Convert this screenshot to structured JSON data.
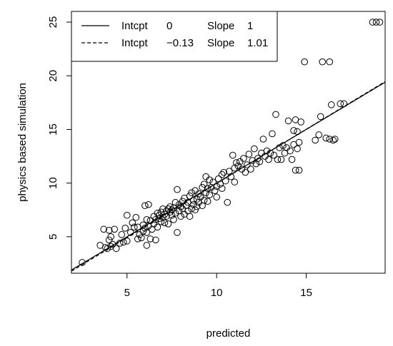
{
  "chart_data": {
    "type": "scatter",
    "title": "",
    "xlabel": "predicted",
    "ylabel": "physics based simulation",
    "xlim": [
      1.9,
      19.4
    ],
    "ylim": [
      1.6,
      26.0
    ],
    "xticks": [
      5,
      10,
      15
    ],
    "yticks": [
      5,
      10,
      15,
      20,
      25
    ],
    "grid": false,
    "legend_position": "top-left",
    "legend": [
      {
        "style": "solid",
        "intercept_label": "Intcpt",
        "intercept_value": "0",
        "slope_label": "Slope",
        "slope_value": "1"
      },
      {
        "style": "dashed",
        "intercept_label": "Intcpt",
        "intercept_value": "−0.13",
        "slope_label": "Slope",
        "slope_value": "1.01"
      }
    ],
    "lines": [
      {
        "style": "solid",
        "intercept": 0,
        "slope": 1
      },
      {
        "style": "dashed",
        "intercept": -0.13,
        "slope": 1.01
      }
    ],
    "points": [
      [
        2.5,
        2.6
      ],
      [
        3.5,
        4.2
      ],
      [
        3.7,
        5.7
      ],
      [
        3.8,
        4.0
      ],
      [
        3.9,
        3.9
      ],
      [
        4.0,
        4.7
      ],
      [
        4.0,
        5.6
      ],
      [
        4.1,
        4.1
      ],
      [
        4.2,
        4.3
      ],
      [
        4.3,
        5.7
      ],
      [
        4.4,
        3.9
      ],
      [
        4.1,
        5.0
      ],
      [
        4.6,
        4.4
      ],
      [
        4.7,
        5.2
      ],
      [
        4.8,
        4.5
      ],
      [
        4.9,
        5.8
      ],
      [
        5.0,
        7.0
      ],
      [
        5.0,
        4.6
      ],
      [
        5.2,
        5.4
      ],
      [
        5.3,
        6.3
      ],
      [
        5.4,
        5.9
      ],
      [
        5.5,
        6.8
      ],
      [
        5.6,
        4.8
      ],
      [
        5.6,
        5.9
      ],
      [
        5.7,
        5.2
      ],
      [
        5.8,
        4.9
      ],
      [
        5.9,
        5.5
      ],
      [
        5.9,
        6.1
      ],
      [
        6.0,
        7.9
      ],
      [
        6.0,
        5.8
      ],
      [
        6.1,
        4.2
      ],
      [
        6.1,
        5.4
      ],
      [
        6.1,
        6.6
      ],
      [
        6.2,
        6.0
      ],
      [
        6.2,
        8.0
      ],
      [
        6.3,
        4.8
      ],
      [
        6.3,
        6.5
      ],
      [
        6.4,
        5.7
      ],
      [
        6.5,
        6.9
      ],
      [
        6.5,
        6.2
      ],
      [
        6.6,
        4.7
      ],
      [
        6.6,
        6.6
      ],
      [
        6.7,
        7.2
      ],
      [
        6.7,
        5.9
      ],
      [
        6.8,
        6.7
      ],
      [
        6.8,
        7.0
      ],
      [
        6.9,
        7.3
      ],
      [
        6.9,
        6.4
      ],
      [
        7.0,
        6.8
      ],
      [
        7.0,
        7.6
      ],
      [
        7.1,
        6.3
      ],
      [
        7.1,
        7.1
      ],
      [
        7.2,
        7.4
      ],
      [
        7.2,
        6.9
      ],
      [
        7.3,
        7.6
      ],
      [
        7.3,
        6.2
      ],
      [
        7.4,
        7.3
      ],
      [
        7.4,
        7.8
      ],
      [
        7.5,
        7.0
      ],
      [
        7.5,
        7.5
      ],
      [
        7.6,
        6.6
      ],
      [
        7.6,
        7.7
      ],
      [
        7.7,
        8.2
      ],
      [
        7.7,
        7.2
      ],
      [
        7.8,
        5.4
      ],
      [
        7.8,
        9.4
      ],
      [
        7.9,
        7.4
      ],
      [
        7.9,
        8.0
      ],
      [
        8.0,
        7.8
      ],
      [
        8.0,
        6.9
      ],
      [
        8.1,
        8.3
      ],
      [
        8.1,
        7.6
      ],
      [
        8.2,
        7.1
      ],
      [
        8.2,
        8.6
      ],
      [
        8.3,
        7.9
      ],
      [
        8.4,
        7.4
      ],
      [
        8.4,
        8.2
      ],
      [
        8.5,
        8.8
      ],
      [
        8.5,
        6.9
      ],
      [
        8.6,
        7.6
      ],
      [
        8.6,
        9.1
      ],
      [
        8.7,
        8.0
      ],
      [
        8.7,
        8.4
      ],
      [
        8.8,
        7.5
      ],
      [
        8.8,
        9.3
      ],
      [
        8.9,
        8.5
      ],
      [
        8.9,
        7.8
      ],
      [
        9.0,
        8.2
      ],
      [
        9.0,
        9.0
      ],
      [
        9.1,
        8.7
      ],
      [
        9.2,
        9.6
      ],
      [
        9.2,
        7.9
      ],
      [
        9.3,
        8.4
      ],
      [
        9.3,
        9.9
      ],
      [
        9.4,
        10.6
      ],
      [
        9.4,
        9.1
      ],
      [
        9.5,
        8.3
      ],
      [
        9.5,
        9.5
      ],
      [
        9.6,
        10.3
      ],
      [
        9.6,
        8.9
      ],
      [
        9.7,
        9.6
      ],
      [
        9.8,
        10.1
      ],
      [
        9.9,
        9.3
      ],
      [
        10.0,
        9.7
      ],
      [
        10.0,
        8.7
      ],
      [
        10.1,
        10.4
      ],
      [
        10.2,
        9.9
      ],
      [
        10.3,
        10.8
      ],
      [
        10.3,
        9.5
      ],
      [
        10.4,
        11.0
      ],
      [
        10.5,
        10.2
      ],
      [
        10.6,
        8.2
      ],
      [
        10.7,
        11.1
      ],
      [
        10.8,
        10.6
      ],
      [
        10.9,
        12.6
      ],
      [
        11.0,
        11.4
      ],
      [
        11.0,
        10.1
      ],
      [
        11.1,
        11.9
      ],
      [
        11.2,
        11.6
      ],
      [
        11.3,
        12.0
      ],
      [
        11.4,
        11.3
      ],
      [
        11.5,
        12.3
      ],
      [
        11.6,
        11.0
      ],
      [
        11.7,
        11.7
      ],
      [
        11.8,
        12.7
      ],
      [
        11.9,
        11.3
      ],
      [
        12.0,
        12.1
      ],
      [
        12.1,
        13.2
      ],
      [
        12.2,
        11.8
      ],
      [
        12.3,
        12.3
      ],
      [
        12.4,
        12.0
      ],
      [
        12.5,
        12.8
      ],
      [
        12.6,
        14.1
      ],
      [
        12.7,
        12.5
      ],
      [
        12.8,
        13.0
      ],
      [
        12.9,
        12.2
      ],
      [
        13.0,
        12.8
      ],
      [
        13.1,
        14.6
      ],
      [
        13.2,
        12.6
      ],
      [
        13.3,
        16.4
      ],
      [
        13.4,
        12.2
      ],
      [
        13.5,
        13.3
      ],
      [
        13.6,
        12.2
      ],
      [
        13.7,
        13.5
      ],
      [
        13.8,
        12.8
      ],
      [
        13.9,
        13.3
      ],
      [
        14.0,
        15.8
      ],
      [
        14.1,
        13.0
      ],
      [
        14.2,
        12.2
      ],
      [
        14.3,
        13.6
      ],
      [
        14.3,
        14.9
      ],
      [
        14.4,
        15.9
      ],
      [
        14.4,
        11.2
      ],
      [
        14.5,
        13.2
      ],
      [
        14.5,
        14.8
      ],
      [
        14.6,
        13.8
      ],
      [
        14.6,
        11.2
      ],
      [
        14.7,
        15.7
      ],
      [
        14.9,
        21.3
      ],
      [
        15.5,
        14.0
      ],
      [
        15.7,
        14.5
      ],
      [
        15.8,
        16.2
      ],
      [
        15.9,
        21.3
      ],
      [
        16.1,
        14.2
      ],
      [
        16.3,
        21.3
      ],
      [
        16.3,
        14.1
      ],
      [
        16.4,
        17.3
      ],
      [
        16.5,
        14.0
      ],
      [
        16.6,
        14.1
      ],
      [
        16.9,
        17.4
      ],
      [
        17.1,
        17.4
      ],
      [
        18.7,
        25.0
      ],
      [
        18.9,
        25.0
      ],
      [
        19.1,
        25.0
      ]
    ]
  }
}
